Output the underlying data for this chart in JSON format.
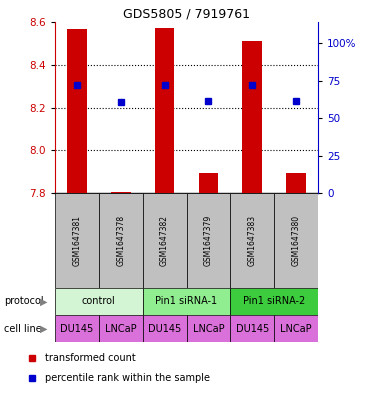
{
  "title": "GDS5805 / 7919761",
  "samples": [
    "GSM1647381",
    "GSM1647378",
    "GSM1647382",
    "GSM1647379",
    "GSM1647383",
    "GSM1647380"
  ],
  "red_bar_bottom": [
    7.8,
    7.8,
    7.8,
    7.8,
    7.8,
    7.8
  ],
  "red_bar_top": [
    8.565,
    7.806,
    8.572,
    7.895,
    8.512,
    7.895
  ],
  "blue_dot_y": [
    8.305,
    8.228,
    8.305,
    8.232,
    8.305,
    8.232
  ],
  "ylim": [
    7.8,
    8.6
  ],
  "yticks_left": [
    7.8,
    8.0,
    8.2,
    8.4,
    8.6
  ],
  "yticks_right_labels": [
    "0",
    "25",
    "50",
    "75",
    "100%"
  ],
  "yticks_right_positions": [
    7.8,
    7.975,
    8.15,
    8.325,
    8.5
  ],
  "protocols": [
    {
      "label": "control",
      "start": 0,
      "end": 2,
      "color": "#d4f5d4"
    },
    {
      "label": "Pin1 siRNA-1",
      "start": 2,
      "end": 4,
      "color": "#90ee90"
    },
    {
      "label": "Pin1 siRNA-2",
      "start": 4,
      "end": 6,
      "color": "#3dcc3d"
    }
  ],
  "cell_labels": [
    "DU145",
    "LNCaP",
    "DU145",
    "LNCaP",
    "DU145",
    "LNCaP"
  ],
  "cell_color": "#da70da",
  "bar_color": "#cc0000",
  "dot_color": "#0000cc",
  "axis_color_left": "#cc0000",
  "axis_color_right": "#0000cc",
  "sample_bg_color": "#c0c0c0",
  "title_fontsize": 9,
  "tick_fontsize": 7.5,
  "sample_fontsize": 5.5,
  "legend_fontsize": 7,
  "protocol_fontsize": 7,
  "cell_fontsize": 7
}
